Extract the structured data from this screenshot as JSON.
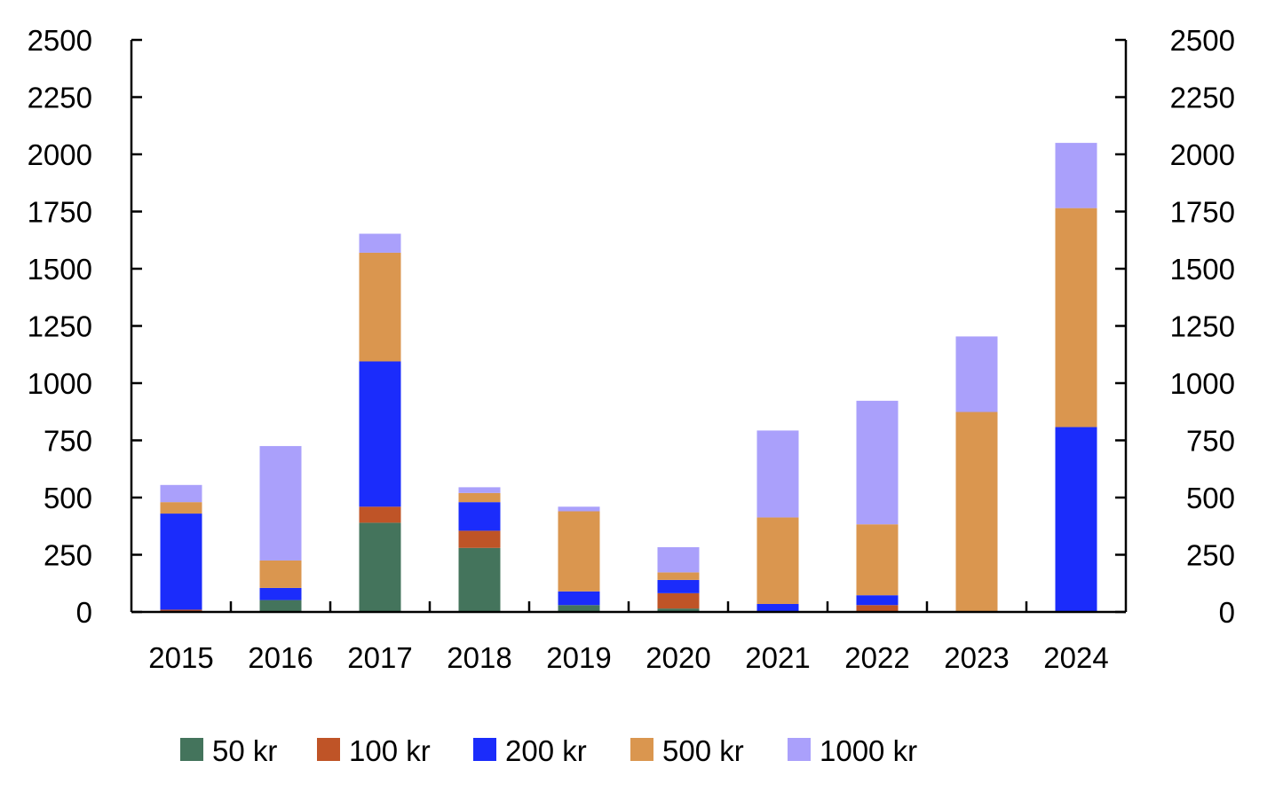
{
  "chart_data": {
    "type": "bar",
    "stacked": true,
    "title": "",
    "xlabel": "",
    "ylabel": "",
    "ylim": [
      0,
      2500
    ],
    "y_ticks": [
      "0",
      "250",
      "500",
      "750",
      "1000",
      "1250",
      "1500",
      "1750",
      "2000",
      "2250",
      "2500"
    ],
    "y_tick_values": [
      0,
      250,
      500,
      750,
      1000,
      1250,
      1500,
      1750,
      2000,
      2250,
      2500
    ],
    "secondary_axis": true,
    "grid": false,
    "legend_position": "bottom",
    "categories": [
      "2015",
      "2016",
      "2017",
      "2018",
      "2019",
      "2020",
      "2021",
      "2022",
      "2023",
      "2024"
    ],
    "series": [
      {
        "name": "50 kr",
        "color": "#44745c",
        "values": [
          0,
          52,
          390,
          280,
          30,
          15,
          0,
          0,
          0,
          0
        ]
      },
      {
        "name": "100 kr",
        "color": "#bf5427",
        "values": [
          10,
          0,
          70,
          75,
          0,
          67,
          0,
          30,
          0,
          0
        ]
      },
      {
        "name": "200 kr",
        "color": "#1b2cfb",
        "values": [
          420,
          53,
          635,
          125,
          60,
          58,
          35,
          43,
          0,
          808
        ]
      },
      {
        "name": "500 kr",
        "color": "#da964f",
        "values": [
          50,
          120,
          475,
          40,
          350,
          33,
          378,
          310,
          874,
          957
        ]
      },
      {
        "name": "1000 kr",
        "color": "#aaa0fb",
        "values": [
          75,
          500,
          83,
          25,
          20,
          110,
          380,
          540,
          330,
          285
        ]
      }
    ]
  }
}
